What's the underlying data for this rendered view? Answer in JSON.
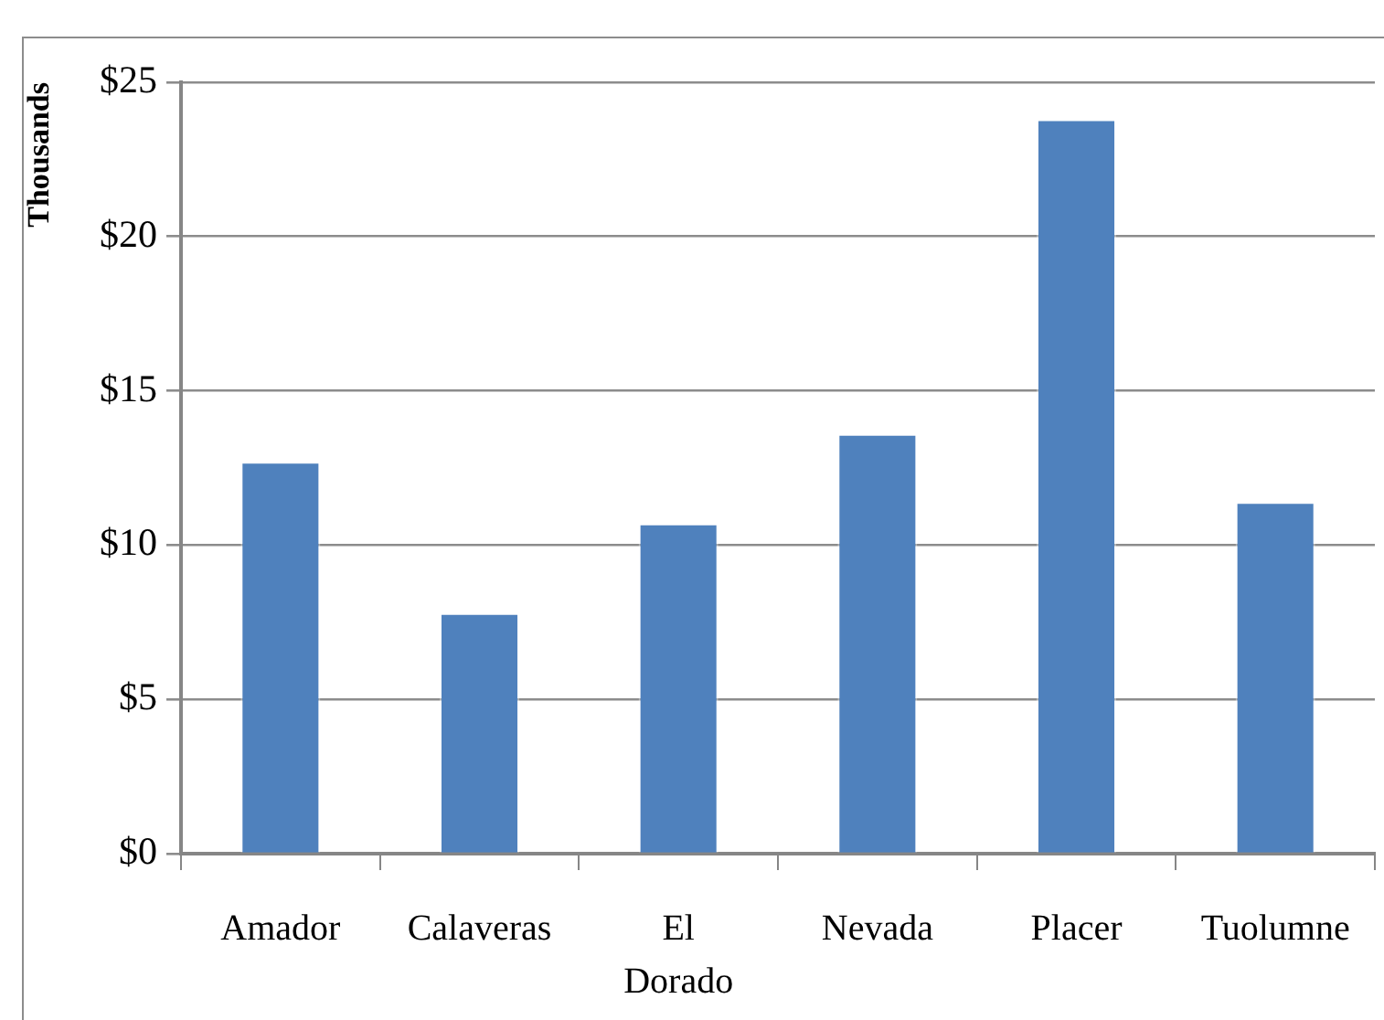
{
  "chart_data": {
    "type": "bar",
    "ylabel": "Thousands",
    "categories": [
      "Amador",
      "Calaveras",
      "El Dorado",
      "Nevada",
      "Placer",
      "Tuolumne"
    ],
    "values": [
      12.7,
      7.8,
      10.7,
      13.6,
      23.8,
      11.4
    ],
    "color": "#4f81bd",
    "ylim": [
      0,
      25
    ],
    "yticks": [
      {
        "value": 0,
        "label": "$0"
      },
      {
        "value": 5,
        "label": "$5"
      },
      {
        "value": 10,
        "label": "$10"
      },
      {
        "value": 15,
        "label": "$15"
      },
      {
        "value": 20,
        "label": "$20"
      },
      {
        "value": 25,
        "label": "$25"
      }
    ],
    "grid": "y",
    "legend": false
  }
}
